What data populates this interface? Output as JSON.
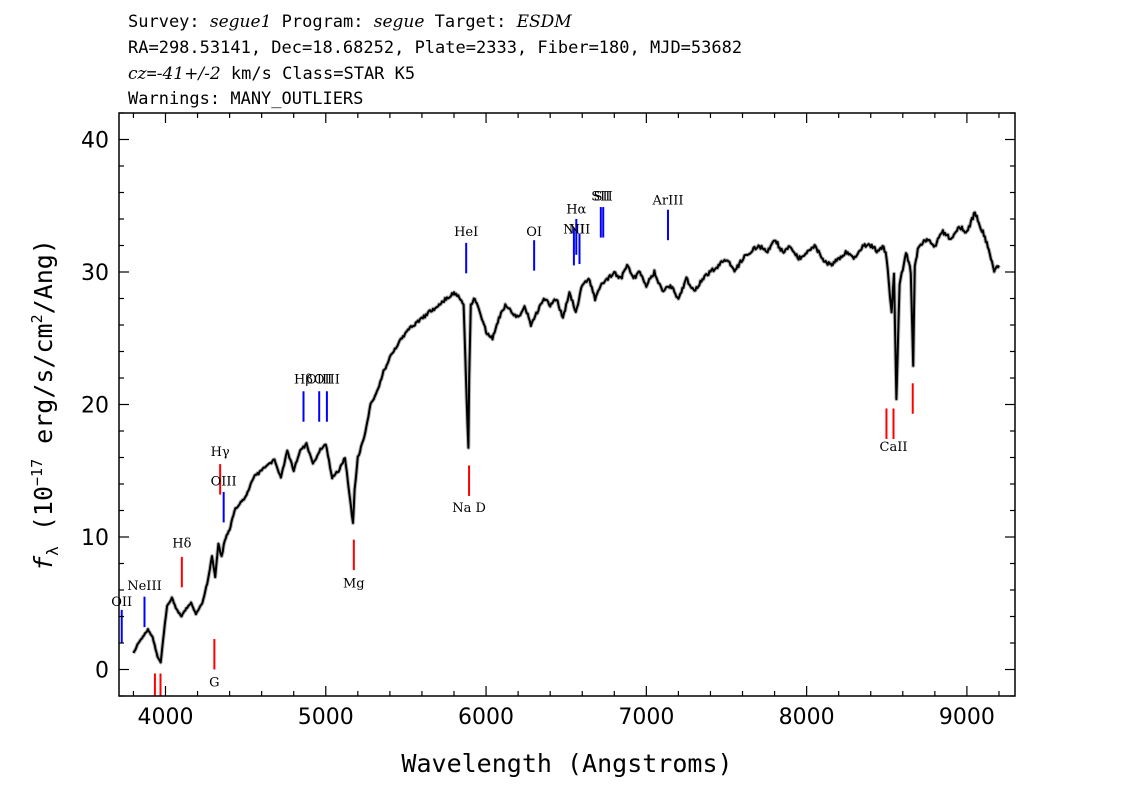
{
  "header": {
    "line1": {
      "survey_label": "Survey: ",
      "survey": "segue1",
      "program_label": " Program: ",
      "program": "segue",
      "target_label": " Target: ",
      "target": "ESDM"
    },
    "line2": "RA=298.53141, Dec=18.68252, Plate=2333, Fiber=180, MJD=53682",
    "line3": {
      "cz_label": "cz",
      "cz_eq": "=",
      "cz_value": "-41+/-2",
      "cz_rest": " km/s Class=STAR K5"
    },
    "line4": "Warnings: MANY_OUTLIERS"
  },
  "colors": {
    "spectrum": "#000000",
    "error_band": "#b4b4b4",
    "emission": "#0000ff",
    "absorption": "#ff0000",
    "axes": "#000000"
  },
  "chart_data": {
    "type": "line",
    "title": "",
    "xlabel": "Wavelength (Angstroms)",
    "ylabel": {
      "prefix": "f",
      "sub": "λ",
      "mid": " (10",
      "exp": "−17",
      "unit": " erg/s/cm",
      "exp2": "2",
      "end": "/Ang)"
    },
    "xlim": [
      3710,
      9300
    ],
    "ylim": [
      -2,
      42
    ],
    "xticks": [
      4000,
      5000,
      6000,
      7000,
      8000,
      9000
    ],
    "xtick_labels": [
      "4000",
      "5000",
      "6000",
      "7000",
      "8000",
      "9000"
    ],
    "yticks": [
      0,
      10,
      20,
      30,
      40
    ],
    "ytick_labels": [
      "0",
      "10",
      "20",
      "30",
      "40"
    ],
    "grid": false,
    "series": [
      {
        "x": [
          3800,
          3830,
          3860,
          3890,
          3920,
          3950,
          3970,
          3990,
          4010,
          4040,
          4070,
          4100,
          4130,
          4160,
          4190,
          4230,
          4260,
          4290,
          4310,
          4330,
          4350,
          4370,
          4400,
          4430,
          4470,
          4500,
          4550,
          4600,
          4640,
          4680,
          4720,
          4760,
          4800,
          4840,
          4880,
          4920,
          4960,
          5000,
          5040,
          5080,
          5120,
          5150,
          5170,
          5180,
          5200,
          5240,
          5280,
          5320,
          5360,
          5400,
          5450,
          5500,
          5550,
          5600,
          5650,
          5700,
          5750,
          5800,
          5840,
          5860,
          5880,
          5890,
          5895,
          5905,
          5930,
          5960,
          6000,
          6040,
          6080,
          6120,
          6160,
          6200,
          6240,
          6280,
          6320,
          6360,
          6400,
          6440,
          6480,
          6520,
          6560,
          6600,
          6640,
          6680,
          6720,
          6760,
          6800,
          6840,
          6880,
          6920,
          6960,
          7000,
          7050,
          7100,
          7150,
          7200,
          7250,
          7300,
          7350,
          7400,
          7450,
          7500,
          7550,
          7600,
          7650,
          7700,
          7750,
          7800,
          7850,
          7900,
          7950,
          8000,
          8050,
          8100,
          8150,
          8200,
          8250,
          8300,
          8350,
          8400,
          8450,
          8480,
          8500,
          8520,
          8530,
          8545,
          8560,
          8580,
          8620,
          8650,
          8665,
          8675,
          8700,
          8750,
          8800,
          8850,
          8900,
          8950,
          9000,
          9050,
          9080,
          9100,
          9130,
          9150,
          9170,
          9200
        ],
        "y": [
          1.2,
          2.0,
          2.5,
          3.0,
          2.4,
          1.0,
          0.5,
          2.8,
          4.8,
          5.4,
          4.5,
          4.0,
          4.6,
          5.0,
          4.2,
          5.0,
          6.5,
          8.5,
          7.0,
          9.5,
          8.5,
          9.8,
          10.5,
          12.0,
          12.6,
          13.0,
          14.5,
          15.0,
          15.5,
          15.8,
          14.5,
          16.5,
          15.0,
          16.5,
          17.0,
          15.5,
          16.5,
          17.0,
          14.5,
          15.0,
          16.0,
          13.0,
          11.0,
          13.5,
          16.0,
          17.5,
          20.0,
          21.0,
          22.5,
          23.5,
          24.5,
          25.5,
          26.0,
          26.5,
          27.0,
          27.5,
          28.0,
          28.5,
          28.0,
          27.5,
          20.0,
          16.8,
          22.0,
          27.5,
          28.0,
          27.0,
          25.5,
          25.0,
          26.5,
          27.5,
          27.0,
          26.5,
          27.5,
          26.0,
          27.0,
          28.0,
          27.5,
          28.0,
          26.5,
          28.5,
          27.0,
          29.0,
          29.5,
          28.0,
          29.0,
          29.5,
          30.0,
          29.5,
          30.5,
          29.5,
          30.0,
          29.0,
          30.0,
          28.5,
          29.0,
          28.0,
          29.5,
          28.5,
          29.5,
          30.0,
          30.5,
          31.0,
          30.0,
          31.0,
          31.5,
          32.0,
          31.5,
          32.5,
          31.5,
          32.0,
          31.0,
          31.5,
          32.0,
          31.0,
          30.5,
          31.0,
          31.5,
          31.0,
          32.0,
          32.0,
          31.5,
          32.0,
          31.0,
          28.0,
          27.0,
          30.0,
          20.5,
          29.0,
          31.5,
          30.0,
          23.0,
          30.5,
          32.0,
          32.5,
          32.0,
          33.0,
          32.5,
          33.5,
          33.0,
          34.5,
          33.5,
          33.0,
          32.0,
          31.0,
          30.0,
          30.5
        ]
      }
    ],
    "annotations": [
      {
        "label": "OII",
        "x": 3727,
        "color": "emission",
        "y1": 4.5,
        "y2": 2.0,
        "label_y": 4.8
      },
      {
        "label": "NeIII",
        "x": 3869,
        "color": "emission",
        "y1": 5.5,
        "y2": 3.2,
        "label_y": 6.0
      },
      {
        "label": "Hδ",
        "x": 4102,
        "color": "absorption",
        "y1": 8.5,
        "y2": 6.2,
        "label_y": 9.2
      },
      {
        "label": "Hγ",
        "x": 4341,
        "color": "absorption",
        "y1": 15.5,
        "y2": 13.2,
        "label_y": 16.1
      },
      {
        "label": "OIII",
        "x": 4363,
        "color": "emission",
        "y1": 13.4,
        "y2": 11.1,
        "label_y": 13.9
      },
      {
        "label": "Hβ",
        "x": 4861,
        "color": "emission",
        "y1": 21.0,
        "y2": 18.7,
        "label_y": 21.6
      },
      {
        "label": "OIII",
        "x": 4959,
        "color": "emission",
        "y1": 21.0,
        "y2": 18.7,
        "label_y": 21.6
      },
      {
        "label": "OIII",
        "x": 5007,
        "color": "emission",
        "y1": 21.0,
        "y2": 18.7,
        "label_y": 21.6
      },
      {
        "label": "HeI",
        "x": 5876,
        "color": "emission",
        "y1": 32.2,
        "y2": 29.9,
        "label_y": 32.7
      },
      {
        "label": "OI",
        "x": 6300,
        "color": "emission",
        "y1": 32.4,
        "y2": 30.1,
        "label_y": 32.7
      },
      {
        "label": "NII",
        "x": 6548,
        "color": "emission",
        "y1": 33.3,
        "y2": 30.5,
        "label_y": 32.9
      },
      {
        "label": "Hα",
        "x": 6563,
        "color": "emission",
        "y1": 34.0,
        "y2": 31.3,
        "label_y": 34.4
      },
      {
        "label": "NII",
        "x": 6583,
        "color": "emission",
        "y1": 32.9,
        "y2": 30.6,
        "label_y": 32.9
      },
      {
        "label": "SII",
        "x": 6716,
        "color": "emission",
        "y1": 34.9,
        "y2": 32.6,
        "label_y": 35.4
      },
      {
        "label": "SII",
        "x": 6731,
        "color": "emission",
        "y1": 34.9,
        "y2": 32.6,
        "label_y": 35.4
      },
      {
        "label": "ArIII",
        "x": 7135,
        "color": "emission",
        "y1": 34.7,
        "y2": 32.4,
        "label_y": 35.1
      },
      {
        "label": "",
        "x": 3934,
        "color": "absorption",
        "y1": -0.3,
        "y2": -2.0,
        "label_y": -2.6
      },
      {
        "label": "",
        "x": 3969,
        "color": "absorption",
        "y1": -0.3,
        "y2": -2.0,
        "label_y": -2.6
      },
      {
        "label": "G",
        "x": 4305,
        "color": "absorption",
        "y1": 2.3,
        "y2": 0.0,
        "label_y": -1.3
      },
      {
        "label": "Mg",
        "x": 5175,
        "color": "absorption",
        "y1": 9.8,
        "y2": 7.5,
        "label_y": 6.2
      },
      {
        "label": "Na D",
        "x": 5894,
        "color": "absorption",
        "y1": 15.4,
        "y2": 13.1,
        "label_y": 11.9
      },
      {
        "label": "",
        "x": 8498,
        "color": "absorption",
        "y1": 19.7,
        "y2": 17.4,
        "label_y": 16.5
      },
      {
        "label": "CaII",
        "x": 8542,
        "color": "absorption",
        "y1": 19.7,
        "y2": 17.4,
        "label_y": 16.5
      },
      {
        "label": "",
        "x": 8662,
        "color": "absorption",
        "y1": 21.6,
        "y2": 19.3,
        "label_y": 18.4
      }
    ]
  }
}
